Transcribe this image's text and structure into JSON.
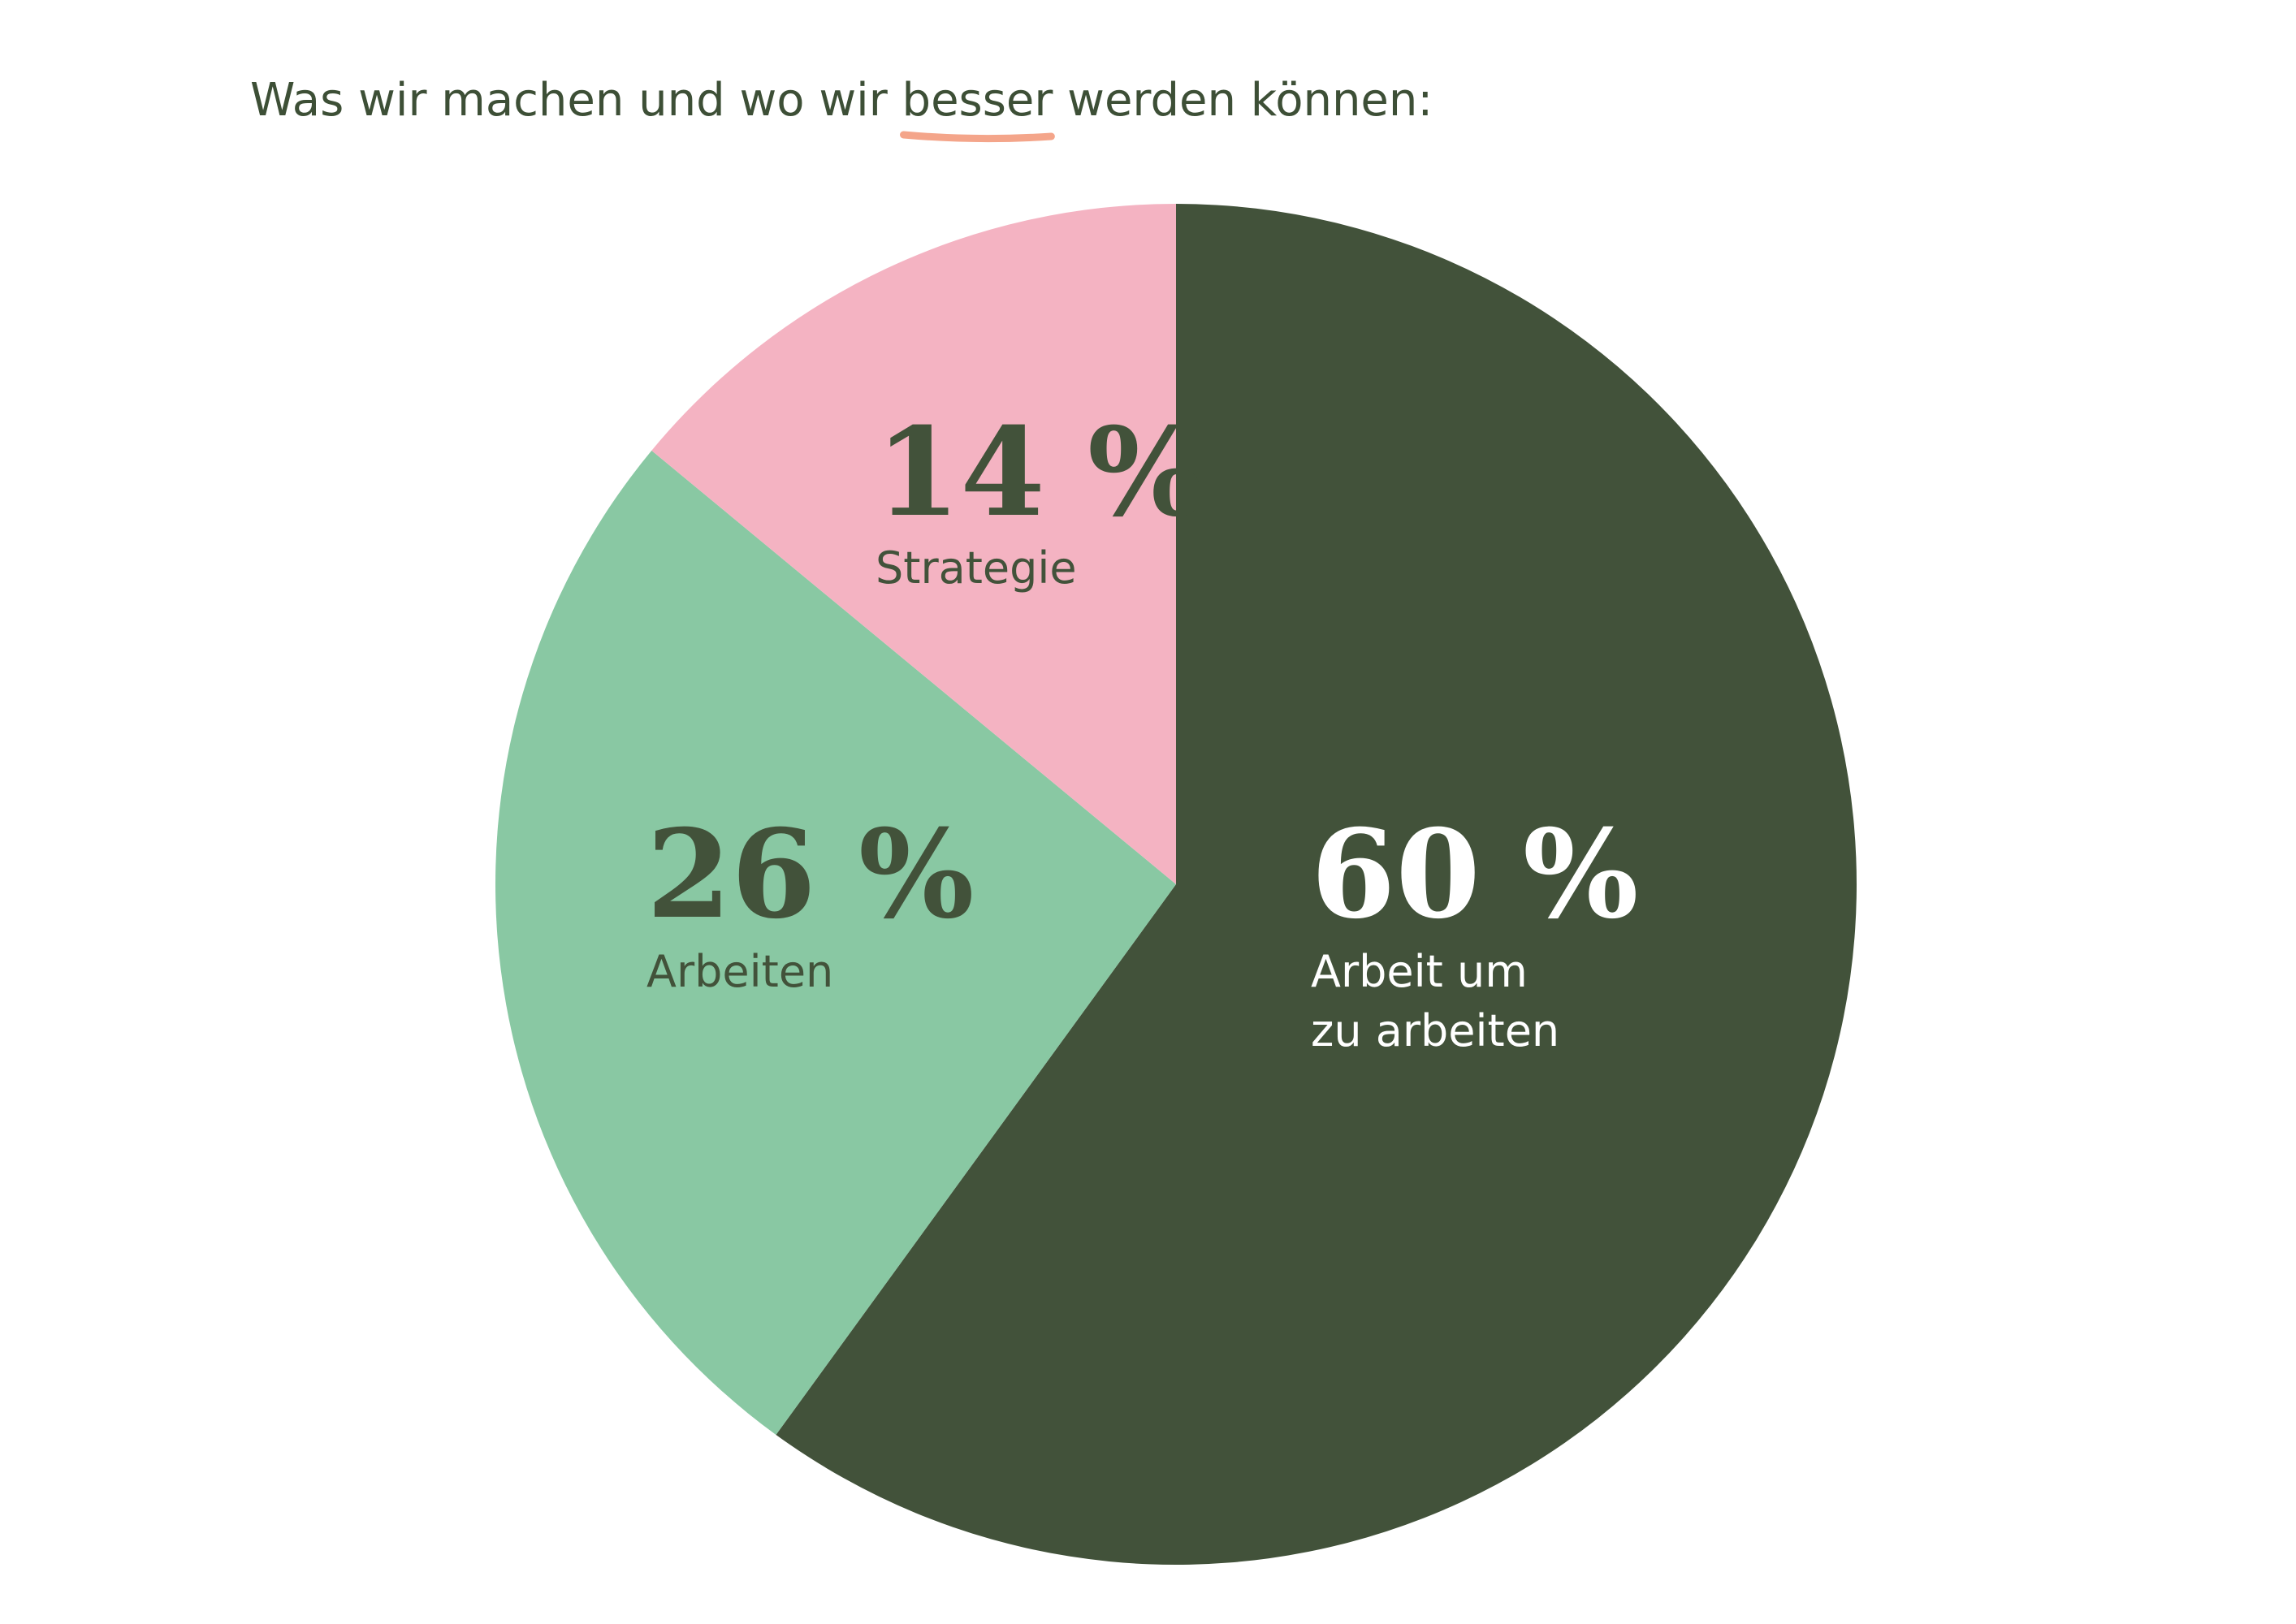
{
  "chart_data": {
    "type": "pie",
    "title": "Was wir machen und wo wir besser werden können:",
    "highlight": "besser",
    "highlight_color": "#f4a58a",
    "categories": [
      "Arbeit um\nzu arbeiten",
      "Arbeiten",
      "Strategie"
    ],
    "values": [
      60,
      26,
      14
    ],
    "value_labels": [
      "60 %",
      "26 %",
      "14 %"
    ],
    "colors": [
      "#42523a",
      "#89c8a3",
      "#f4b3c2"
    ]
  }
}
